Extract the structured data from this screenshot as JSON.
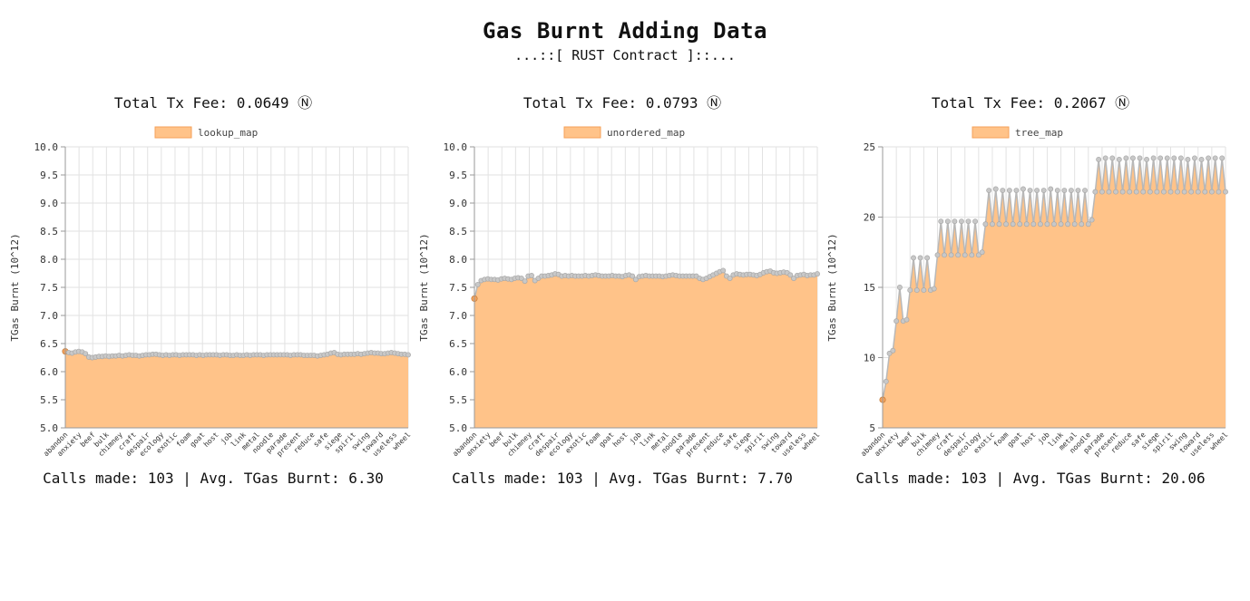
{
  "header": {
    "title": "Gas Burnt Adding Data",
    "subtitle": "...::[ RUST Contract ]::..."
  },
  "colors": {
    "fill": "#ffc389",
    "line": "#b8b8b8",
    "point": "#c8c8c8",
    "first_point": "#f5a15a",
    "grid": "#e2e2e2",
    "axis": "#9a9a9a",
    "legend_fill": "#ffc389",
    "legend_stroke": "#f5a15a"
  },
  "chart_data": [
    {
      "type": "area",
      "fee_label": "Total Tx Fee: 0.0649 Ⓝ",
      "legend": "lookup_map",
      "ylabel": "TGas Burnt (10^12)",
      "ylim": [
        5.0,
        10.0
      ],
      "yticks": [
        "5.0",
        "5.5",
        "6.0",
        "6.5",
        "7.0",
        "7.5",
        "8.0",
        "8.5",
        "9.0",
        "9.5",
        "10.0"
      ],
      "ytick_values": [
        5.0,
        5.5,
        6.0,
        6.5,
        7.0,
        7.5,
        8.0,
        8.5,
        9.0,
        9.5,
        10.0
      ],
      "xtick_labels": [
        "abandon",
        "anxiety",
        "beef",
        "bulk",
        "chimney",
        "craft",
        "despair",
        "ecology",
        "exotic",
        "foam",
        "goat",
        "host",
        "job",
        "link",
        "metal",
        "noodle",
        "parade",
        "present",
        "reduce",
        "safe",
        "siege",
        "spirit",
        "swing",
        "toward",
        "useless",
        "wheel"
      ],
      "calls_label": "Calls made: 103 | Avg. TGas Burnt: 6.30",
      "values": [
        6.36,
        6.34,
        6.33,
        6.35,
        6.36,
        6.35,
        6.32,
        6.26,
        6.25,
        6.26,
        6.27,
        6.27,
        6.28,
        6.27,
        6.28,
        6.28,
        6.29,
        6.28,
        6.29,
        6.3,
        6.29,
        6.29,
        6.28,
        6.29,
        6.3,
        6.3,
        6.31,
        6.31,
        6.3,
        6.29,
        6.3,
        6.29,
        6.3,
        6.3,
        6.29,
        6.3,
        6.3,
        6.3,
        6.3,
        6.29,
        6.3,
        6.29,
        6.3,
        6.3,
        6.3,
        6.3,
        6.29,
        6.3,
        6.3,
        6.29,
        6.29,
        6.3,
        6.29,
        6.29,
        6.3,
        6.29,
        6.3,
        6.3,
        6.3,
        6.29,
        6.3,
        6.3,
        6.3,
        6.3,
        6.3,
        6.3,
        6.3,
        6.29,
        6.3,
        6.3,
        6.3,
        6.29,
        6.29,
        6.29,
        6.29,
        6.28,
        6.29,
        6.3,
        6.31,
        6.33,
        6.34,
        6.31,
        6.3,
        6.31,
        6.31,
        6.31,
        6.31,
        6.32,
        6.31,
        6.32,
        6.33,
        6.34,
        6.33,
        6.33,
        6.32,
        6.32,
        6.33,
        6.34,
        6.33,
        6.32,
        6.31,
        6.31,
        6.3
      ]
    },
    {
      "type": "area",
      "fee_label": "Total Tx Fee: 0.0793 Ⓝ",
      "legend": "unordered_map",
      "ylabel": "TGas Burnt (10^12)",
      "ylim": [
        5.0,
        10.0
      ],
      "yticks": [
        "5.0",
        "5.5",
        "6.0",
        "6.5",
        "7.0",
        "7.5",
        "8.0",
        "8.5",
        "9.0",
        "9.5",
        "10.0"
      ],
      "ytick_values": [
        5.0,
        5.5,
        6.0,
        6.5,
        7.0,
        7.5,
        8.0,
        8.5,
        9.0,
        9.5,
        10.0
      ],
      "xtick_labels": [
        "abandon",
        "anxiety",
        "beef",
        "bulk",
        "chimney",
        "craft",
        "despair",
        "ecology",
        "exotic",
        "foam",
        "goat",
        "host",
        "job",
        "link",
        "metal",
        "noodle",
        "parade",
        "present",
        "reduce",
        "safe",
        "siege",
        "spirit",
        "swing",
        "toward",
        "useless",
        "wheel"
      ],
      "calls_label": "Calls made: 103 | Avg. TGas Burnt: 7.70",
      "values": [
        7.3,
        7.55,
        7.62,
        7.64,
        7.65,
        7.64,
        7.64,
        7.63,
        7.65,
        7.66,
        7.65,
        7.64,
        7.66,
        7.67,
        7.66,
        7.61,
        7.7,
        7.71,
        7.62,
        7.66,
        7.7,
        7.7,
        7.71,
        7.72,
        7.74,
        7.73,
        7.7,
        7.71,
        7.7,
        7.71,
        7.7,
        7.7,
        7.7,
        7.71,
        7.7,
        7.71,
        7.72,
        7.71,
        7.7,
        7.7,
        7.7,
        7.71,
        7.7,
        7.7,
        7.69,
        7.71,
        7.72,
        7.7,
        7.64,
        7.69,
        7.7,
        7.71,
        7.7,
        7.7,
        7.7,
        7.7,
        7.69,
        7.7,
        7.71,
        7.72,
        7.71,
        7.7,
        7.7,
        7.7,
        7.7,
        7.7,
        7.7,
        7.66,
        7.64,
        7.66,
        7.69,
        7.72,
        7.75,
        7.78,
        7.8,
        7.7,
        7.66,
        7.72,
        7.74,
        7.73,
        7.72,
        7.73,
        7.73,
        7.72,
        7.71,
        7.73,
        7.76,
        7.78,
        7.79,
        7.76,
        7.75,
        7.76,
        7.77,
        7.76,
        7.72,
        7.66,
        7.71,
        7.72,
        7.73,
        7.71,
        7.72,
        7.72,
        7.74
      ]
    },
    {
      "type": "area",
      "fee_label": "Total Tx Fee: 0.2067 Ⓝ",
      "legend": "tree_map",
      "ylabel": "TGas Burnt (10^12)",
      "ylim": [
        5,
        25
      ],
      "yticks": [
        "5",
        "10",
        "15",
        "20",
        "25"
      ],
      "ytick_values": [
        5,
        10,
        15,
        20,
        25
      ],
      "xtick_labels": [
        "abandon",
        "anxiety",
        "beef",
        "bulk",
        "chimney",
        "craft",
        "despair",
        "ecology",
        "exotic",
        "foam",
        "goat",
        "host",
        "job",
        "link",
        "metal",
        "noodle",
        "parade",
        "present",
        "reduce",
        "safe",
        "siege",
        "spirit",
        "swing",
        "toward",
        "useless",
        "wheel"
      ],
      "calls_label": "Calls made: 103 | Avg. TGas Burnt: 20.06",
      "values": [
        7.0,
        8.3,
        10.3,
        10.5,
        12.6,
        15.0,
        12.6,
        12.7,
        14.8,
        17.1,
        14.8,
        17.1,
        14.8,
        17.1,
        14.8,
        14.9,
        17.3,
        19.7,
        17.3,
        19.7,
        17.3,
        19.7,
        17.3,
        19.7,
        17.3,
        19.7,
        17.3,
        19.7,
        17.3,
        17.5,
        19.5,
        21.9,
        19.5,
        22.0,
        19.5,
        21.9,
        19.5,
        21.9,
        19.5,
        21.9,
        19.5,
        22.0,
        19.5,
        21.9,
        19.5,
        21.9,
        19.5,
        21.9,
        19.5,
        22.0,
        19.5,
        21.9,
        19.5,
        21.9,
        19.5,
        21.9,
        19.5,
        21.9,
        19.5,
        21.9,
        19.5,
        19.8,
        21.8,
        24.1,
        21.8,
        24.2,
        21.8,
        24.2,
        21.8,
        24.1,
        21.8,
        24.2,
        21.8,
        24.2,
        21.8,
        24.2,
        21.8,
        24.1,
        21.8,
        24.2,
        21.8,
        24.2,
        21.8,
        24.2,
        21.8,
        24.2,
        21.8,
        24.2,
        21.8,
        24.1,
        21.8,
        24.2,
        21.8,
        24.1,
        21.8,
        24.2,
        21.8,
        24.2,
        21.8,
        24.2,
        21.8
      ]
    }
  ]
}
